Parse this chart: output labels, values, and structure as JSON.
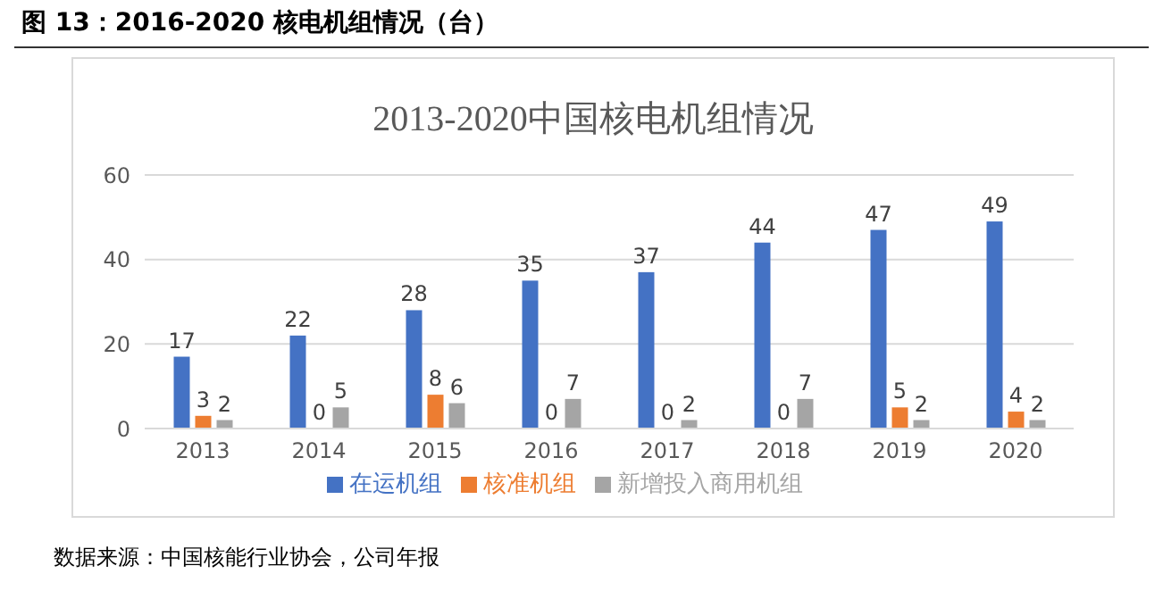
{
  "chart_data": {
    "type": "bar",
    "title": "图 13：2016-2020 核电机组情况（台）",
    "subtitle": "2013-2020中国核电机组情况",
    "categories": [
      "2013",
      "2014",
      "2015",
      "2016",
      "2017",
      "2018",
      "2019",
      "2020"
    ],
    "series": [
      {
        "name": "在运机组",
        "color": "#4472c4",
        "values": [
          17,
          22,
          28,
          35,
          37,
          44,
          47,
          49
        ]
      },
      {
        "name": "核准机组",
        "color": "#ed7d31",
        "values": [
          3,
          0,
          8,
          0,
          0,
          0,
          5,
          4
        ]
      },
      {
        "name": "新增投入商用机组",
        "color": "#a5a5a5",
        "values": [
          2,
          5,
          6,
          7,
          2,
          7,
          2,
          2
        ]
      }
    ],
    "ylim": [
      0,
      60
    ],
    "yticks": [
      0,
      20,
      40,
      60
    ],
    "grid": "y",
    "legend": "bottom",
    "data_labels": true,
    "annotations": [
      "数据来源：中国核能行业协会，公司年报"
    ]
  }
}
